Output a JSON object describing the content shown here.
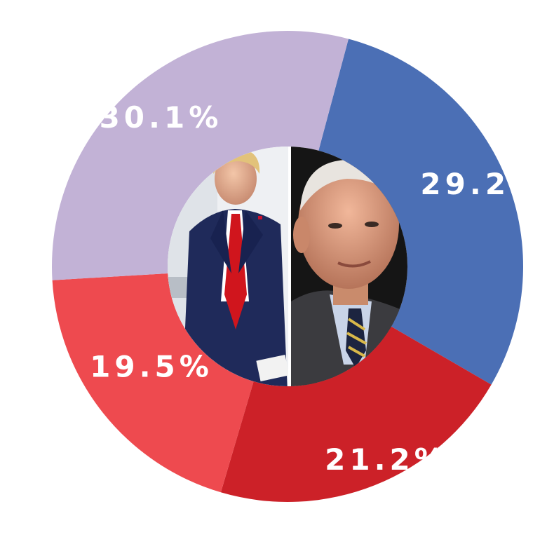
{
  "chart_data": {
    "type": "pie",
    "categories": [
      "",
      "",
      "",
      ""
    ],
    "values": [
      29.2,
      21.2,
      19.5,
      30.1
    ],
    "labels": [
      "29.2%",
      "21.2%",
      "19.5%",
      "30.1%"
    ],
    "colors": [
      "#4b6fb5",
      "#cc2128",
      "#ee4a4f",
      "#c2b2d6"
    ],
    "title": "",
    "legend": "none",
    "center_photos": [
      "donald-trump-photo",
      "joe-biden-photo"
    ]
  }
}
